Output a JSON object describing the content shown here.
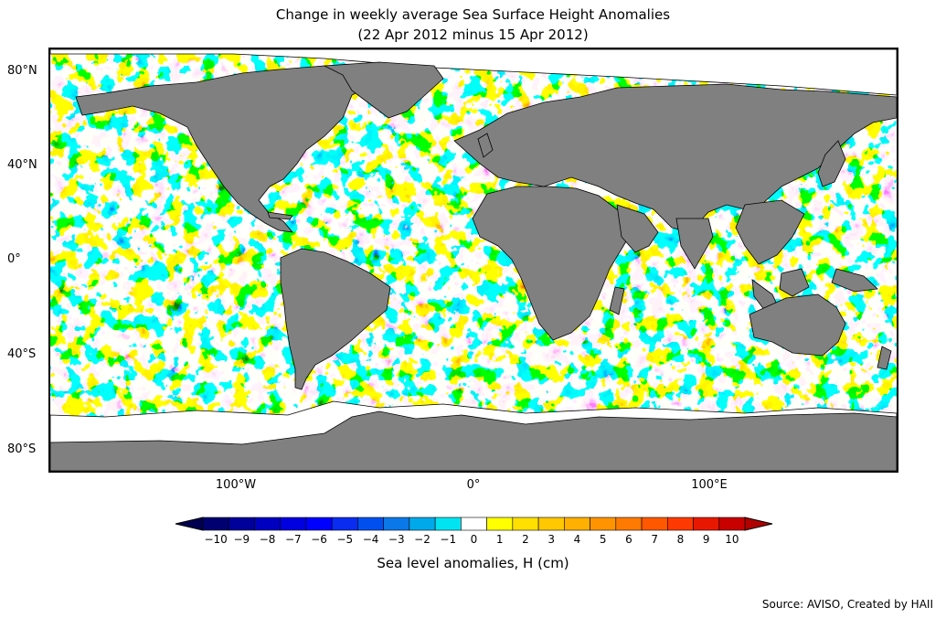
{
  "title": {
    "line1": "Change in weekly average Sea Surface Height Anomalies",
    "line2": "(22 Apr 2012 minus 15 Apr 2012)"
  },
  "map": {
    "lat_labels": [
      "80°N",
      "40°N",
      "0°",
      "40°S",
      "80°S"
    ],
    "lon_labels": [
      "100°W",
      "0°",
      "100°E"
    ],
    "land_color": "#808080",
    "ice_color": "#ffffff"
  },
  "colorbar": {
    "ticks": [
      "−10",
      "−9",
      "−8",
      "−7",
      "−6",
      "−5",
      "−4",
      "−3",
      "−2",
      "−1",
      "0",
      "1",
      "2",
      "3",
      "4",
      "5",
      "6",
      "7",
      "8",
      "9",
      "10"
    ],
    "colors": [
      "#000070",
      "#00009a",
      "#0000c0",
      "#0000e0",
      "#0000ff",
      "#0a2cf0",
      "#0050f0",
      "#0a78e8",
      "#00aaea",
      "#00e4f2",
      "#ffffff",
      "#ffff00",
      "#ffe000",
      "#ffc800",
      "#ffb000",
      "#ff9400",
      "#ff7a00",
      "#ff5800",
      "#ff3a00",
      "#e81800",
      "#c80000"
    ],
    "label": "Sea level anomalies, H (cm)"
  },
  "source": "Source: AVISO, Created by HAII"
}
